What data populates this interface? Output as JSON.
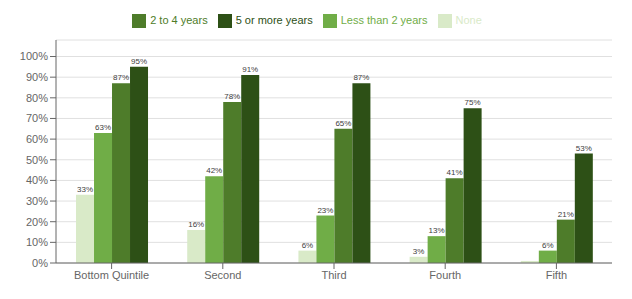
{
  "chart_data": {
    "type": "bar",
    "categories": [
      "Bottom Quintile",
      "Second",
      "Third",
      "Fourth",
      "Fifth"
    ],
    "series": [
      {
        "name": "None",
        "color": "#d9eac8",
        "values": [
          33,
          16,
          6,
          3,
          1
        ],
        "value_labels": [
          "33%",
          "16%",
          "6%",
          "3%",
          null
        ]
      },
      {
        "name": "Less than 2 years",
        "color": "#70ad47",
        "values": [
          63,
          42,
          23,
          13,
          6
        ],
        "value_labels": [
          "63%",
          "42%",
          "23%",
          "13%",
          "6%"
        ]
      },
      {
        "name": "2 to 4 years",
        "color": "#4e7c2a",
        "values": [
          87,
          78,
          65,
          41,
          21
        ],
        "value_labels": [
          "87%",
          "78%",
          "65%",
          "41%",
          "21%"
        ]
      },
      {
        "name": "5 or more years",
        "color": "#2d5016",
        "values": [
          95,
          91,
          87,
          75,
          53
        ],
        "value_labels": [
          "95%",
          "91%",
          "87%",
          "75%",
          "53%"
        ]
      }
    ],
    "ylim": [
      0,
      108
    ],
    "yticks": [
      {
        "value": 0,
        "label": "0%"
      },
      {
        "value": 10,
        "label": "10%"
      },
      {
        "value": 20,
        "label": "20%"
      },
      {
        "value": 30,
        "label": "30%"
      },
      {
        "value": 40,
        "label": "40%"
      },
      {
        "value": 50,
        "label": "50%"
      },
      {
        "value": 60,
        "label": "60%"
      },
      {
        "value": 70,
        "label": "70%"
      },
      {
        "value": 80,
        "label": "80%"
      },
      {
        "value": 90,
        "label": "90%"
      },
      {
        "value": 100,
        "label": "100%"
      }
    ],
    "grid": true,
    "legend": "top",
    "data_labels": true
  }
}
